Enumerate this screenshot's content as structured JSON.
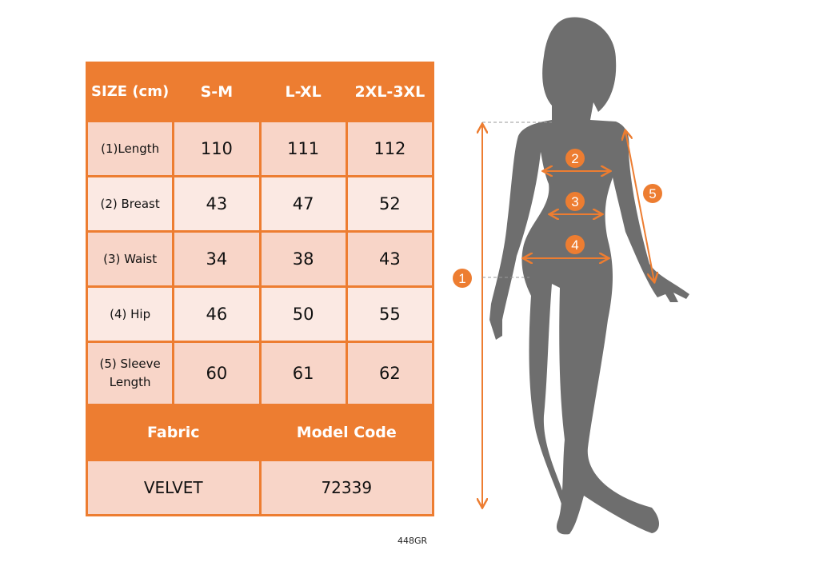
{
  "table": {
    "header": [
      "SIZE (cm)",
      "S-M",
      "L-XL",
      "2XL-3XL"
    ],
    "rows": [
      {
        "label": "(1)Length",
        "values": [
          "110",
          "111",
          "112"
        ]
      },
      {
        "label": "(2) Breast",
        "values": [
          "43",
          "47",
          "52"
        ]
      },
      {
        "label": "(3) Waist",
        "values": [
          "34",
          "38",
          "43"
        ]
      },
      {
        "label": "(4) Hip",
        "values": [
          "46",
          "50",
          "55"
        ]
      },
      {
        "label": "(5) Sleeve Length",
        "values": [
          "60",
          "61",
          "62"
        ]
      }
    ],
    "footer_headers": [
      "Fabric",
      "Model Code"
    ],
    "footer_values": [
      "VELVET",
      "72339"
    ]
  },
  "product_code": "448GR",
  "diagram": {
    "markers": [
      "1",
      "2",
      "3",
      "4",
      "5"
    ]
  },
  "colors": {
    "accent": "#ED7D31",
    "cell_dark": "#F8D5C8",
    "cell_light": "#FBE9E3",
    "silhouette": "#6E6E6E"
  }
}
